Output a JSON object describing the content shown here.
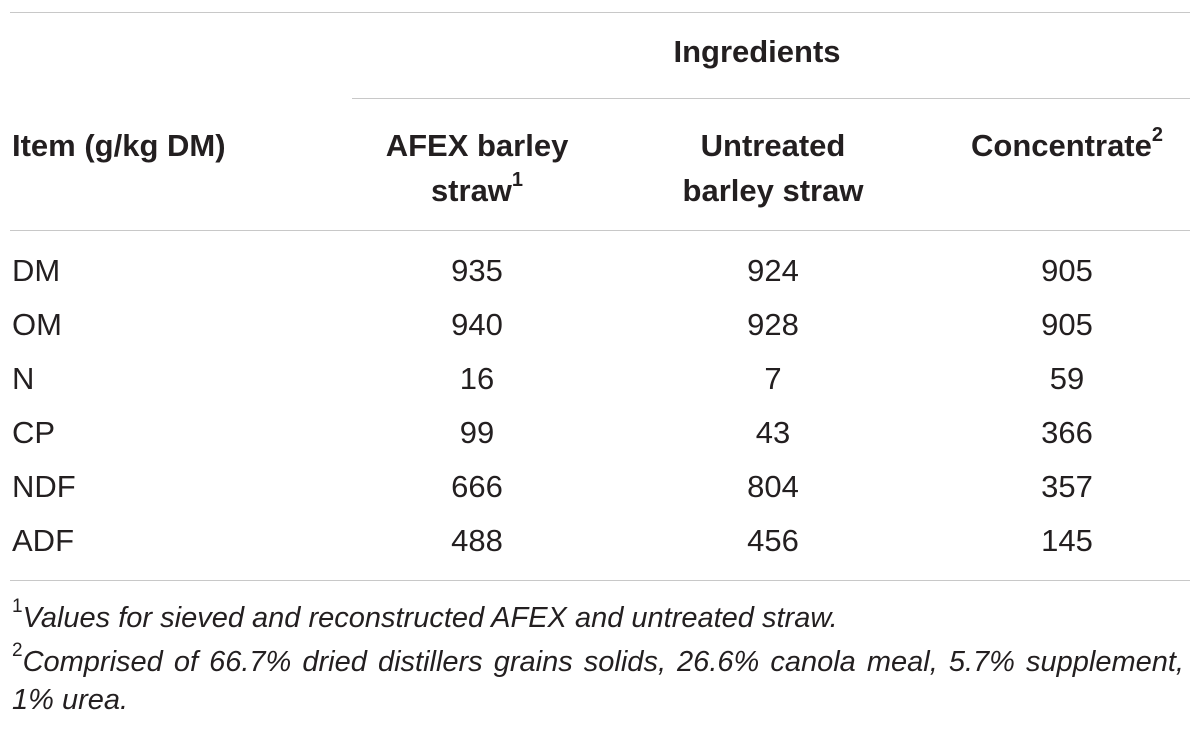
{
  "table": {
    "group_header": "Ingredients",
    "stub_header": "Item (g/kg DM)",
    "columns": [
      {
        "line1": "AFEX barley",
        "line2": "straw",
        "sup": "1"
      },
      {
        "line1": "Untreated",
        "line2": "barley straw",
        "sup": ""
      },
      {
        "line1": "Concentrate",
        "line2": "",
        "sup": "2"
      }
    ],
    "rows": [
      {
        "item": "DM",
        "values": [
          "935",
          "924",
          "905"
        ]
      },
      {
        "item": "OM",
        "values": [
          "940",
          "928",
          "905"
        ]
      },
      {
        "item": "N",
        "values": [
          "16",
          "7",
          "59"
        ]
      },
      {
        "item": "CP",
        "values": [
          "99",
          "43",
          "366"
        ]
      },
      {
        "item": "NDF",
        "values": [
          "666",
          "804",
          "357"
        ]
      },
      {
        "item": "ADF",
        "values": [
          "488",
          "456",
          "145"
        ]
      }
    ]
  },
  "footnotes": [
    {
      "marker": "1",
      "text": "Values for sieved and reconstructed AFEX and untreated straw."
    },
    {
      "marker": "2",
      "text": "Comprised of 66.7% dried distillers grains solids, 26.6% canola meal, 5.7% supplement, 1% urea."
    }
  ]
}
